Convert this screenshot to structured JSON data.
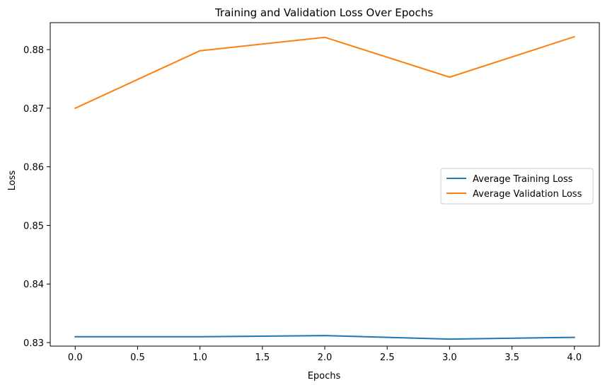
{
  "chart_data": {
    "type": "line",
    "title": "Training and Validation Loss Over Epochs",
    "xlabel": "Epochs",
    "ylabel": "Loss",
    "x": [
      0,
      1,
      2,
      3,
      4
    ],
    "xlim": [
      -0.2,
      4.2
    ],
    "ylim": [
      0.8294,
      0.8846
    ],
    "xticks": [
      0.0,
      0.5,
      1.0,
      1.5,
      2.0,
      2.5,
      3.0,
      3.5,
      4.0
    ],
    "xtick_labels": [
      "0.0",
      "0.5",
      "1.0",
      "1.5",
      "2.0",
      "2.5",
      "3.0",
      "3.5",
      "4.0"
    ],
    "yticks": [
      0.83,
      0.84,
      0.85,
      0.86,
      0.87,
      0.88
    ],
    "ytick_labels": [
      "0.83",
      "0.84",
      "0.85",
      "0.86",
      "0.87",
      "0.88"
    ],
    "grid": false,
    "legend_position": "center-right",
    "series": [
      {
        "name": "Average Training Loss",
        "color": "#1f77b4",
        "values": [
          0.831,
          0.831,
          0.8312,
          0.8306,
          0.8309
        ]
      },
      {
        "name": "Average Validation Loss",
        "color": "#ff7f0e",
        "values": [
          0.87,
          0.8798,
          0.8821,
          0.8753,
          0.8822
        ]
      }
    ]
  }
}
